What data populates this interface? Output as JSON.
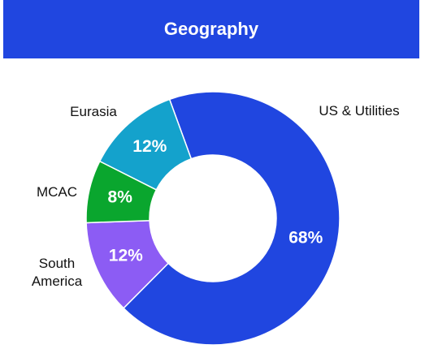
{
  "chart_data": {
    "type": "donut",
    "title": "Geography",
    "categories": [
      "US & Utilities",
      "South America",
      "MCAC",
      "Eurasia"
    ],
    "values": [
      68,
      12,
      8,
      12
    ],
    "value_labels": [
      "68%",
      "12%",
      "8%",
      "12%"
    ],
    "colors": [
      "#2046e0",
      "#8c5cf4",
      "#0aa62e",
      "#14a2cc"
    ]
  }
}
